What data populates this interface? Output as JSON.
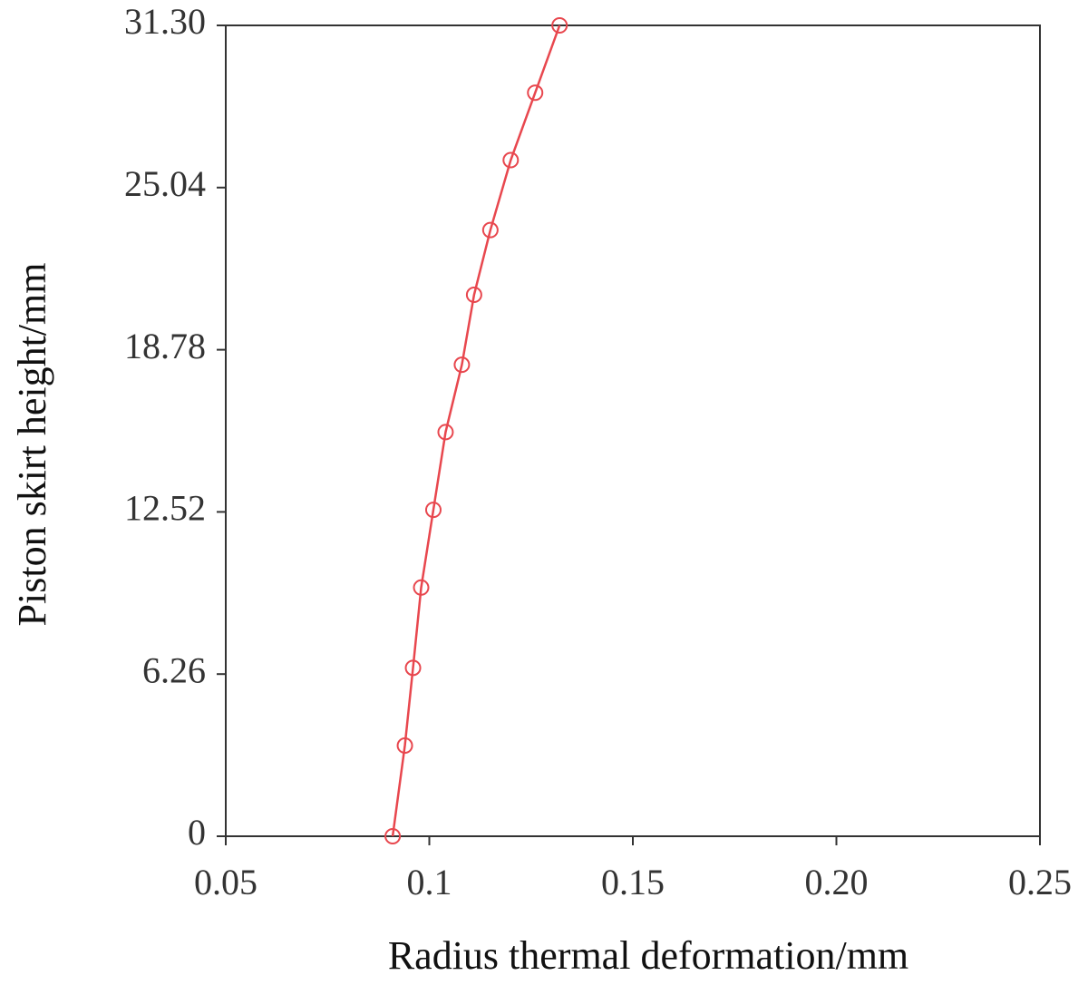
{
  "chart_data": {
    "type": "line",
    "x_label": "Radius thermal deformation/mm",
    "y_label": "Piston skirt height/mm",
    "x": [
      0.091,
      0.094,
      0.096,
      0.098,
      0.101,
      0.104,
      0.108,
      0.111,
      0.115,
      0.12,
      0.126,
      0.132
    ],
    "series": [
      {
        "color": "#e8474e",
        "values": [
          0,
          3.5,
          6.5,
          9.6,
          12.6,
          15.6,
          18.2,
          20.9,
          23.4,
          26.1,
          28.7,
          31.3
        ]
      }
    ],
    "xlim": [
      0.05,
      0.25
    ],
    "xticks": [
      0.05,
      0.1,
      0.15,
      {
        "value": 0.2,
        "label": "0.20"
      },
      0.25
    ],
    "ylim": [
      0,
      31.3
    ],
    "yticks": [
      0,
      6.26,
      12.52,
      18.78,
      25.04,
      {
        "value": 31.3,
        "label": "31.30"
      }
    ]
  }
}
